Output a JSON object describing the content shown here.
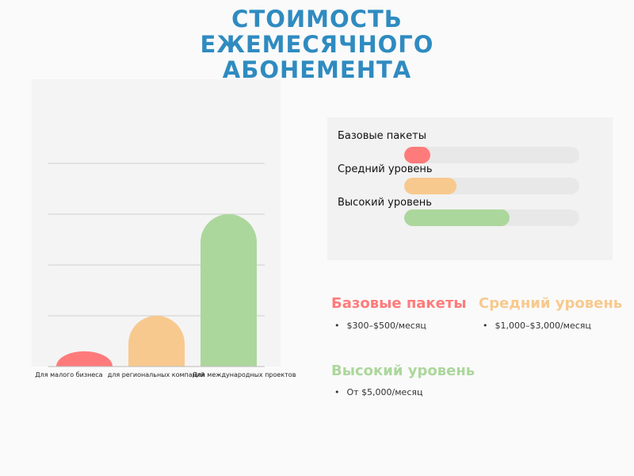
{
  "title_lines": [
    "СТОИМОСТЬ",
    "ЕЖЕМЕСЯЧНОГО",
    "АБОНЕМЕНТА"
  ],
  "chart_data": {
    "type": "bar",
    "categories": [
      "Для малого бизнеса",
      "для региональных компаний",
      "Для международных проектов"
    ],
    "values": [
      0.3,
      1,
      3
    ],
    "colors": [
      "#ff7b7b",
      "#f8c98e",
      "#acd79c"
    ],
    "ylim": [
      0,
      4
    ],
    "grid": true
  },
  "progress": [
    {
      "label": "Базовые пакеты",
      "value": 15,
      "color": "#ff7b7b"
    },
    {
      "label": "Средний уровень",
      "value": 30,
      "color": "#f8c98e"
    },
    {
      "label": "Высокий уровень",
      "value": 60,
      "color": "#acd79c"
    }
  ],
  "tiers": [
    {
      "heading": "Базовые пакеты",
      "price": "$300–$500/месяц",
      "color": "#ff7b7b"
    },
    {
      "heading": "Средний уровень",
      "price": "$1,000–$3,000/месяц",
      "color": "#f8c98e"
    },
    {
      "heading": "Высокий уровень",
      "price": "От $5,000/месяц",
      "color": "#acd79c"
    }
  ]
}
